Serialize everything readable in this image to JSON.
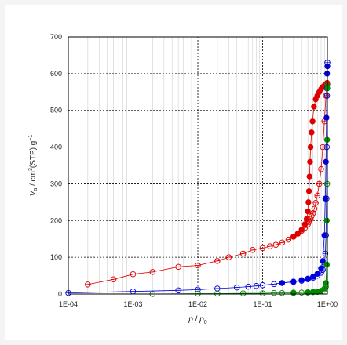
{
  "chart_data": {
    "type": "scatter",
    "title": "",
    "xlabel_italic": "p",
    "xlabel_rest": " / ",
    "xlabel_sub_base": "p",
    "xlabel_sub": "0",
    "ylabel_main": "V",
    "ylabel_sub": "a",
    "ylabel_unit": " / cm",
    "ylabel_sup3": "3",
    "ylabel_stp": "(STP) g",
    "ylabel_supm1": "−1",
    "x_scale": "log",
    "xlim": [
      0.0001,
      1
    ],
    "ylim": [
      0,
      700
    ],
    "x_ticks": [
      0.0001,
      0.001,
      0.01,
      0.1,
      1
    ],
    "x_tick_labels": [
      "1E-04",
      "1E-03",
      "1E-02",
      "1E-01",
      "1E+00"
    ],
    "y_ticks": [
      0,
      100,
      200,
      300,
      400,
      500,
      600,
      700
    ],
    "y_tick_labels": [
      "0",
      "100",
      "200",
      "300",
      "400",
      "500",
      "600",
      "700"
    ],
    "grid": true,
    "legend": "none",
    "series": [
      {
        "color": "#dd0000",
        "adsorption": {
          "x": [
            0.0002,
            0.0005,
            0.001,
            0.002,
            0.005,
            0.01,
            0.02,
            0.03,
            0.05,
            0.07,
            0.1,
            0.13,
            0.16,
            0.2,
            0.25,
            0.3,
            0.35,
            0.4,
            0.45,
            0.5,
            0.52,
            0.55,
            0.57,
            0.6,
            0.63,
            0.66,
            0.7,
            0.75,
            0.8,
            0.85,
            0.9,
            0.95,
            0.98,
            0.99
          ],
          "y": [
            26,
            40,
            54,
            60,
            74,
            78,
            90,
            100,
            110,
            120,
            125,
            130,
            134,
            140,
            148,
            156,
            164,
            172,
            180,
            190,
            196,
            204,
            212,
            220,
            232,
            248,
            268,
            300,
            340,
            400,
            470,
            540,
            565,
            572
          ]
        },
        "desorption": {
          "x": [
            0.99,
            0.97,
            0.94,
            0.9,
            0.85,
            0.8,
            0.75,
            0.7,
            0.66,
            0.62,
            0.59,
            0.57,
            0.55,
            0.54,
            0.53,
            0.52,
            0.51,
            0.5,
            0.48,
            0.45,
            0.4,
            0.35,
            0.3
          ],
          "y": [
            575,
            572,
            570,
            568,
            564,
            558,
            550,
            540,
            530,
            510,
            470,
            440,
            400,
            360,
            320,
            280,
            250,
            225,
            205,
            190,
            175,
            165,
            156
          ]
        }
      },
      {
        "color": "#0000dd",
        "adsorption": {
          "x": [
            0.0001,
            0.001,
            0.005,
            0.01,
            0.02,
            0.04,
            0.06,
            0.08,
            0.1,
            0.15,
            0.2,
            0.3,
            0.4,
            0.5,
            0.6,
            0.7,
            0.8,
            0.85,
            0.9,
            0.93,
            0.95,
            0.97,
            0.98,
            0.99,
            1.0
          ],
          "y": [
            3,
            7,
            10,
            12,
            15,
            18,
            20,
            22,
            24,
            27,
            30,
            33,
            36,
            40,
            44,
            50,
            58,
            66,
            80,
            110,
            160,
            260,
            400,
            540,
            630
          ]
        },
        "desorption": {
          "x": [
            1.0,
            0.99,
            0.98,
            0.97,
            0.95,
            0.93,
            0.9,
            0.85,
            0.8,
            0.7,
            0.6,
            0.5,
            0.4,
            0.3,
            0.2
          ],
          "y": [
            620,
            600,
            560,
            480,
            360,
            260,
            160,
            90,
            70,
            55,
            47,
            42,
            38,
            34,
            30
          ]
        }
      },
      {
        "color": "#008800",
        "adsorption": {
          "x": [
            0.002,
            0.01,
            0.02,
            0.05,
            0.1,
            0.15,
            0.2,
            0.3,
            0.4,
            0.5,
            0.6,
            0.7,
            0.8,
            0.9,
            0.95,
            0.98,
            0.99,
            1.0
          ],
          "y": [
            0,
            1,
            1,
            2,
            2,
            3,
            3,
            3,
            4,
            4,
            5,
            6,
            8,
            12,
            20,
            80,
            300,
            570
          ]
        },
        "desorption": {
          "x": [
            1.0,
            0.99,
            0.98,
            0.97,
            0.95,
            0.9,
            0.8,
            0.7,
            0.6,
            0.5,
            0.3
          ],
          "y": [
            560,
            420,
            200,
            80,
            30,
            15,
            9,
            7,
            6,
            5,
            4
          ]
        }
      }
    ]
  }
}
